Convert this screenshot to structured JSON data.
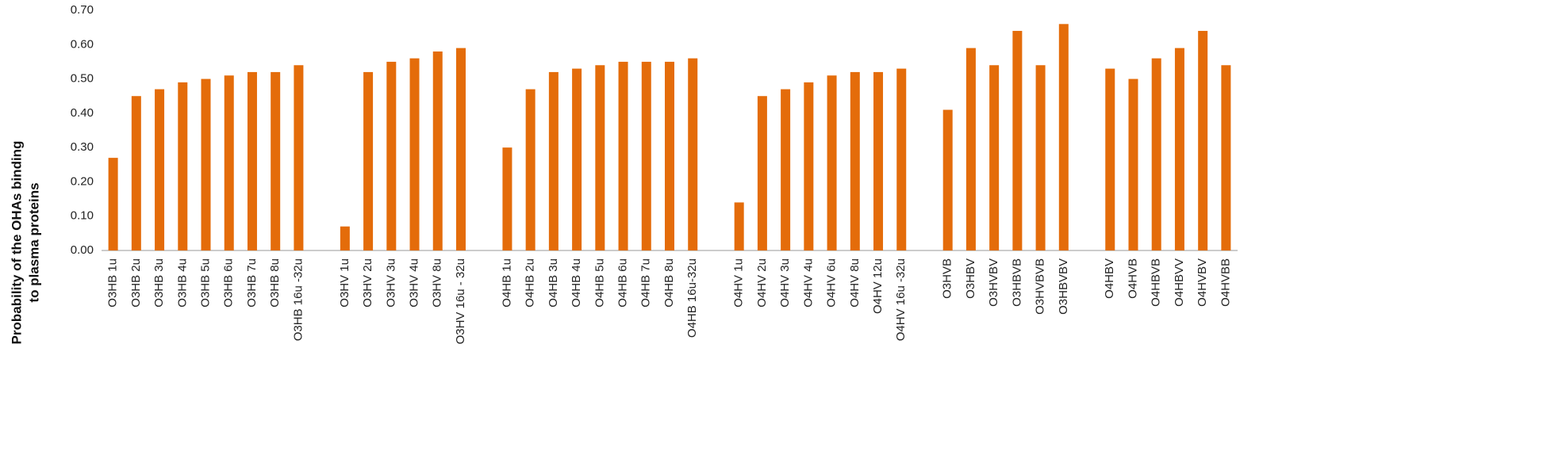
{
  "chart_data": {
    "type": "bar",
    "y_label": [
      "Probability of the OHAs binding",
      "to plasma proteins"
    ],
    "categories": [
      "O3HB 1u",
      "O3HB 2u",
      "O3HB 3u",
      "O3HB 4u",
      "O3HB 5u",
      "O3HB 6u",
      "O3HB 7u",
      "O3HB 8u",
      "O3HB 16u -32u",
      null,
      "O3HV 1u",
      "O3HV 2u",
      "O3HV 3u",
      "O3HV 4u",
      "O3HV 8u",
      "O3HV 16u - 32u",
      null,
      "O4HB 1u",
      "O4HB 2u",
      "O4HB 3u",
      "O4HB 4u",
      "O4HB 5u",
      "O4HB 6u",
      "O4HB 7u",
      "O4HB 8u",
      "O4HB 16u-32u",
      null,
      "O4HV 1u",
      "O4HV 2u",
      "O4HV 3u",
      "O4HV 4u",
      "O4HV 6u",
      "O4HV 8u",
      "O4HV 12u",
      "O4HV 16u -32u",
      null,
      "O3HVB",
      "O3HBV",
      "O3HVBV",
      "O3HBVB",
      "O3HVBVB",
      "O3HBVBV",
      null,
      "O4HBV",
      "O4HVB",
      "O4HBVB",
      "O4HBVV",
      "O4HVBV",
      "O4HVBB"
    ],
    "values": [
      0.27,
      0.45,
      0.47,
      0.49,
      0.5,
      0.51,
      0.52,
      0.52,
      0.54,
      null,
      0.07,
      0.52,
      0.55,
      0.56,
      0.58,
      0.59,
      null,
      0.3,
      0.47,
      0.52,
      0.53,
      0.54,
      0.55,
      0.55,
      0.55,
      0.56,
      null,
      0.14,
      0.45,
      0.47,
      0.49,
      0.51,
      0.52,
      0.52,
      0.53,
      null,
      0.41,
      0.59,
      0.54,
      0.64,
      0.54,
      0.66,
      null,
      0.53,
      0.5,
      0.56,
      0.59,
      0.64,
      0.54
    ],
    "color": "#e46c0a",
    "ylim": [
      0,
      0.7
    ],
    "yticks": [
      {
        "value": 0,
        "label": "0.00"
      },
      {
        "value": 0.1,
        "label": "0.10"
      },
      {
        "value": 0.2,
        "label": "0.20"
      },
      {
        "value": 0.3,
        "label": "0.30"
      },
      {
        "value": 0.4,
        "label": "0.40"
      },
      {
        "value": 0.5,
        "label": "0.50"
      },
      {
        "value": 0.6,
        "label": "0.60"
      },
      {
        "value": 0.7,
        "label": "0.70"
      }
    ],
    "grid": false
  }
}
